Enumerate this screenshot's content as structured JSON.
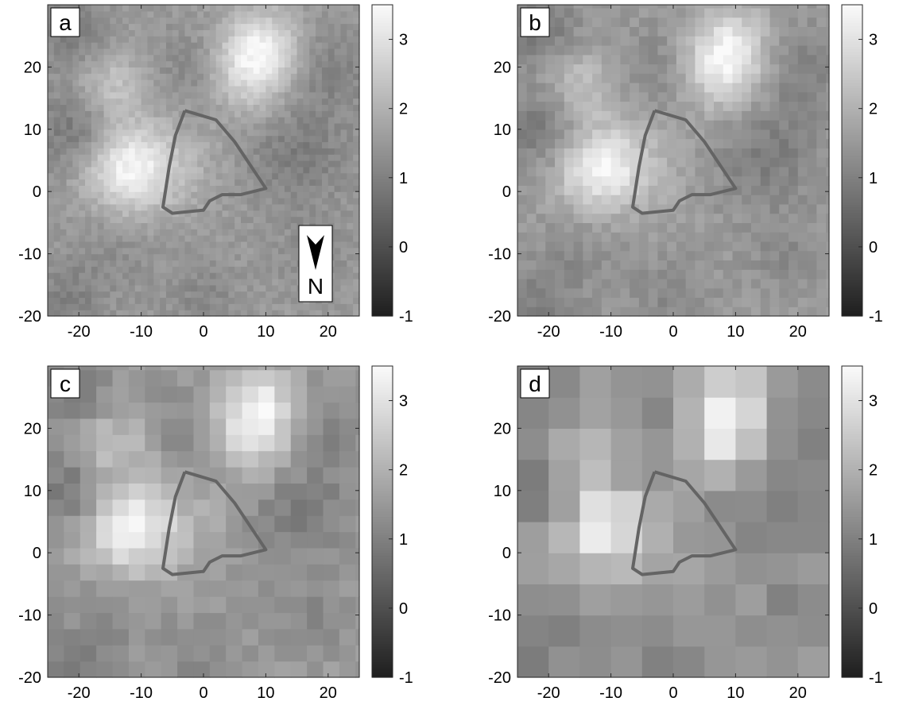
{
  "chart_data": [
    {
      "type": "heatmap",
      "panel_label": "a",
      "resolution": "fine",
      "xlim": [
        -25,
        25
      ],
      "ylim": [
        -20,
        30
      ],
      "xticks": [
        -20,
        -10,
        0,
        10,
        20
      ],
      "yticks": [
        -20,
        -10,
        0,
        10,
        20
      ],
      "colorbar": {
        "range": [
          -1,
          3.5
        ],
        "ticks": [
          -1,
          0,
          1,
          2,
          3
        ],
        "colormap": "gray"
      },
      "north_arrow": {
        "label": "N",
        "direction": "down"
      },
      "seed": 11,
      "cell": 1.0
    },
    {
      "type": "heatmap",
      "panel_label": "b",
      "resolution": "medium",
      "xlim": [
        -25,
        25
      ],
      "ylim": [
        -20,
        30
      ],
      "xticks": [
        -20,
        -10,
        0,
        10,
        20
      ],
      "yticks": [
        -20,
        -10,
        0,
        10,
        20
      ],
      "colorbar": {
        "range": [
          -1,
          3.5
        ],
        "ticks": [
          -1,
          0,
          1,
          2,
          3
        ],
        "colormap": "gray"
      },
      "seed": 23,
      "cell": 1.5
    },
    {
      "type": "heatmap",
      "panel_label": "c",
      "resolution": "coarse",
      "xlim": [
        -25,
        25
      ],
      "ylim": [
        -20,
        30
      ],
      "xticks": [
        -20,
        -10,
        0,
        10,
        20
      ],
      "yticks": [
        -20,
        -10,
        0,
        10,
        20
      ],
      "colorbar": {
        "range": [
          -1,
          3.5
        ],
        "ticks": [
          -1,
          0,
          1,
          2,
          3
        ],
        "colormap": "gray"
      },
      "seed": 37,
      "cell": 2.6
    },
    {
      "type": "heatmap",
      "panel_label": "d",
      "resolution": "very coarse",
      "xlim": [
        -25,
        25
      ],
      "ylim": [
        -20,
        30
      ],
      "xticks": [
        -20,
        -10,
        0,
        10,
        20
      ],
      "yticks": [
        -20,
        -10,
        0,
        10,
        20
      ],
      "colorbar": {
        "range": [
          -1,
          3.5
        ],
        "ticks": [
          -1,
          0,
          1,
          2,
          3
        ],
        "colormap": "gray"
      },
      "seed": 53,
      "cell": 5.0
    }
  ],
  "outline": {
    "color": "#646464",
    "points": [
      [
        -3,
        13
      ],
      [
        2,
        11.5
      ],
      [
        5,
        8
      ],
      [
        7,
        5
      ],
      [
        10,
        0.5
      ],
      [
        6,
        -0.5
      ],
      [
        3,
        -0.5
      ],
      [
        1,
        -1.5
      ],
      [
        0,
        -3
      ],
      [
        -5,
        -3.5
      ],
      [
        -6.5,
        -2.5
      ],
      [
        -5.5,
        4
      ],
      [
        -4.5,
        9
      ],
      [
        -3,
        13
      ]
    ]
  },
  "field": {
    "base": 1.55,
    "bumps": [
      [
        -12,
        4,
        5,
        1.9
      ],
      [
        -15,
        17,
        4,
        0.9
      ],
      [
        7,
        20,
        5,
        1.6
      ],
      [
        10,
        24,
        4,
        0.9
      ],
      [
        0,
        20,
        5,
        -0.6
      ],
      [
        -20,
        10,
        5,
        -0.8
      ],
      [
        -21,
        26,
        4,
        -0.7
      ],
      [
        15,
        6,
        6,
        -0.6
      ],
      [
        20,
        20,
        5,
        -0.5
      ],
      [
        -3,
        4,
        5,
        0.35
      ],
      [
        -15,
        -10,
        5,
        -0.3
      ],
      [
        0,
        -17,
        4,
        -0.4
      ],
      [
        18,
        -10,
        4,
        -0.35
      ],
      [
        -22,
        -18,
        4,
        -0.5
      ]
    ],
    "noise": 0.45
  }
}
